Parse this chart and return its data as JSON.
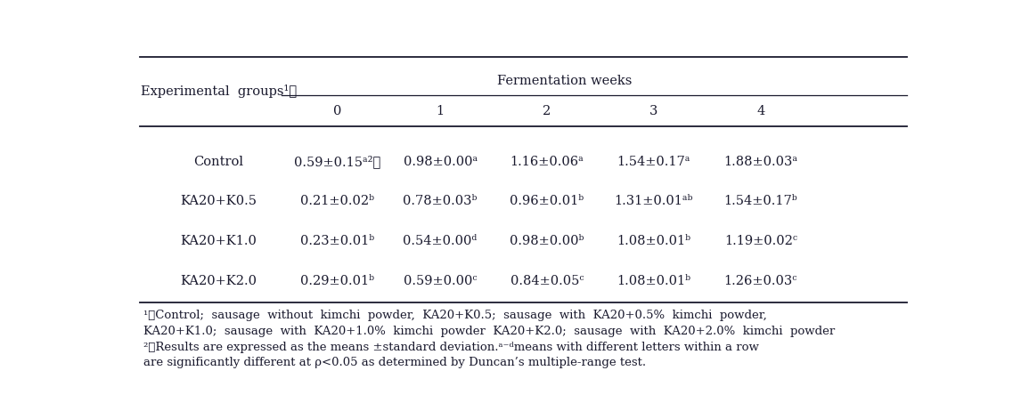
{
  "col_header_weeks": [
    "0",
    "1",
    "2",
    "3",
    "4"
  ],
  "rows": [
    {
      "group": "Control",
      "values": [
        "0.59±0.15ᵃ²⧠",
        "0.98±0.00ᵃ",
        "1.16±0.06ᵃ",
        "1.54±0.17ᵃ",
        "1.88±0.03ᵃ"
      ]
    },
    {
      "group": "KA20+K0.5",
      "values": [
        "0.21±0.02ᵇ",
        "0.78±0.03ᵇ",
        "0.96±0.01ᵇ",
        "1.31±0.01ᵃᵇ",
        "1.54±0.17ᵇ"
      ]
    },
    {
      "group": "KA20+K1.0",
      "values": [
        "0.23±0.01ᵇ",
        "0.54±0.00ᵈ",
        "0.98±0.00ᵇ",
        "1.08±0.01ᵇ",
        "1.19±0.02ᶜ"
      ]
    },
    {
      "group": "KA20+K2.0",
      "values": [
        "0.29±0.01ᵇ",
        "0.59±0.00ᶜ",
        "0.84±0.05ᶜ",
        "1.08±0.01ᵇ",
        "1.26±0.03ᶜ"
      ]
    }
  ],
  "bg_color": "#ffffff",
  "text_color": "#1a1a2e",
  "font_size": 10.5,
  "footnote_font_size": 9.5
}
